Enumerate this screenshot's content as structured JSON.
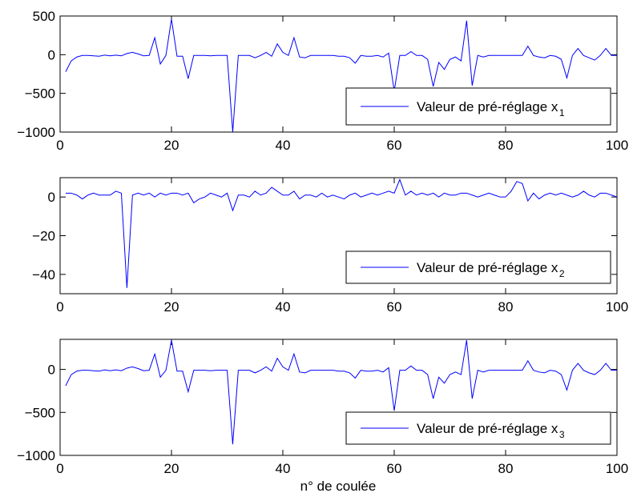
{
  "figure": {
    "xlabel": "n° de coulée"
  },
  "chart_data": [
    {
      "type": "line",
      "xlim": [
        0,
        100
      ],
      "ylim": [
        -1000,
        500
      ],
      "xticks": [
        0,
        20,
        40,
        60,
        80,
        100
      ],
      "yticks": [
        -1000,
        -500,
        0,
        500
      ],
      "legend_position": "bottom-right",
      "series": [
        {
          "name": "Valeur de pré-réglage x",
          "subscript": "1",
          "color": "#0000ff",
          "x": [
            1,
            2,
            3,
            4,
            5,
            6,
            7,
            8,
            9,
            10,
            11,
            12,
            13,
            14,
            15,
            16,
            17,
            18,
            19,
            20,
            21,
            22,
            23,
            24,
            25,
            26,
            27,
            28,
            29,
            30,
            31,
            32,
            33,
            34,
            35,
            36,
            37,
            38,
            39,
            40,
            41,
            42,
            43,
            44,
            45,
            46,
            47,
            48,
            49,
            50,
            51,
            52,
            53,
            54,
            55,
            56,
            57,
            58,
            59,
            60,
            61,
            62,
            63,
            64,
            65,
            66,
            67,
            68,
            69,
            70,
            71,
            72,
            73,
            74,
            75,
            76,
            77,
            78,
            79,
            80,
            81,
            82,
            83,
            84,
            85,
            86,
            87,
            88,
            89,
            90,
            91,
            92,
            93,
            94,
            95,
            96,
            97,
            98,
            99,
            100
          ],
          "y": [
            -220,
            -80,
            -30,
            -10,
            -10,
            -15,
            -20,
            -5,
            -15,
            -5,
            -15,
            15,
            30,
            10,
            -15,
            -10,
            220,
            -120,
            -10,
            460,
            -20,
            -20,
            -310,
            -10,
            -10,
            -10,
            -15,
            -10,
            -10,
            -10,
            -1000,
            -10,
            -10,
            -10,
            -40,
            -10,
            30,
            -20,
            140,
            30,
            -10,
            220,
            -30,
            -40,
            -10,
            -10,
            -10,
            -10,
            -10,
            -20,
            -20,
            -40,
            -110,
            -10,
            -20,
            -20,
            -10,
            -30,
            20,
            -470,
            -10,
            -10,
            40,
            -10,
            -10,
            -60,
            -410,
            -100,
            -190,
            -60,
            -30,
            -80,
            440,
            -400,
            -10,
            -30,
            -10,
            -10,
            -10,
            -10,
            -10,
            -10,
            -10,
            110,
            -10,
            -30,
            -40,
            -10,
            -20,
            -60,
            -300,
            -10,
            80,
            -10,
            -40,
            -70,
            -10,
            80,
            -10,
            -10
          ]
        }
      ]
    },
    {
      "type": "line",
      "xlim": [
        0,
        100
      ],
      "ylim": [
        -50,
        10
      ],
      "xticks": [
        0,
        20,
        40,
        60,
        80,
        100
      ],
      "yticks": [
        -40,
        -20,
        0
      ],
      "legend_position": "bottom-right",
      "series": [
        {
          "name": "Valeur de pré-réglage x",
          "subscript": "2",
          "color": "#0000ff",
          "x": [
            1,
            2,
            3,
            4,
            5,
            6,
            7,
            8,
            9,
            10,
            11,
            12,
            13,
            14,
            15,
            16,
            17,
            18,
            19,
            20,
            21,
            22,
            23,
            24,
            25,
            26,
            27,
            28,
            29,
            30,
            31,
            32,
            33,
            34,
            35,
            36,
            37,
            38,
            39,
            40,
            41,
            42,
            43,
            44,
            45,
            46,
            47,
            48,
            49,
            50,
            51,
            52,
            53,
            54,
            55,
            56,
            57,
            58,
            59,
            60,
            61,
            62,
            63,
            64,
            65,
            66,
            67,
            68,
            69,
            70,
            71,
            72,
            73,
            74,
            75,
            76,
            77,
            78,
            79,
            80,
            81,
            82,
            83,
            84,
            85,
            86,
            87,
            88,
            89,
            90,
            91,
            92,
            93,
            94,
            95,
            96,
            97,
            98,
            99,
            100
          ],
          "y": [
            2,
            2,
            1,
            -1,
            1,
            2,
            1,
            1,
            1,
            3,
            2,
            -47,
            1,
            2,
            1,
            2,
            0,
            2,
            1,
            2,
            2,
            1,
            2,
            -3,
            -1,
            0,
            2,
            1,
            0,
            2,
            -7,
            1,
            1,
            0,
            3,
            1,
            2,
            5,
            3,
            1,
            1,
            3,
            -1,
            1,
            1,
            0,
            2,
            0,
            1,
            0,
            -1,
            1,
            2,
            0,
            1,
            2,
            1,
            2,
            3,
            2,
            9,
            1,
            3,
            1,
            2,
            1,
            2,
            0,
            2,
            1,
            1,
            2,
            2,
            1,
            0,
            1,
            2,
            1,
            0,
            0,
            3,
            8,
            7,
            -2,
            2,
            -1,
            1,
            2,
            1,
            2,
            1,
            0,
            1,
            3,
            1,
            0,
            2,
            2,
            1,
            0
          ]
        }
      ]
    },
    {
      "type": "line",
      "xlim": [
        0,
        100
      ],
      "ylim": [
        -1000,
        350
      ],
      "xticks": [
        0,
        20,
        40,
        60,
        80,
        100
      ],
      "yticks": [
        -1000,
        -500,
        0
      ],
      "legend_position": "bottom-right",
      "series": [
        {
          "name": "Valeur de pré-réglage x",
          "subscript": "3",
          "color": "#0000ff",
          "x": [
            1,
            2,
            3,
            4,
            5,
            6,
            7,
            8,
            9,
            10,
            11,
            12,
            13,
            14,
            15,
            16,
            17,
            18,
            19,
            20,
            21,
            22,
            23,
            24,
            25,
            26,
            27,
            28,
            29,
            30,
            31,
            32,
            33,
            34,
            35,
            36,
            37,
            38,
            39,
            40,
            41,
            42,
            43,
            44,
            45,
            46,
            47,
            48,
            49,
            50,
            51,
            52,
            53,
            54,
            55,
            56,
            57,
            58,
            59,
            60,
            61,
            62,
            63,
            64,
            65,
            66,
            67,
            68,
            69,
            70,
            71,
            72,
            73,
            74,
            75,
            76,
            77,
            78,
            79,
            80,
            81,
            82,
            83,
            84,
            85,
            86,
            87,
            88,
            89,
            90,
            91,
            92,
            93,
            94,
            95,
            96,
            97,
            98,
            99,
            100
          ],
          "y": [
            -190,
            -60,
            -20,
            -10,
            -10,
            -15,
            -20,
            -5,
            -15,
            -5,
            -15,
            15,
            30,
            10,
            -15,
            -10,
            180,
            -90,
            -10,
            340,
            -20,
            -20,
            -260,
            -10,
            -10,
            -10,
            -15,
            -10,
            -10,
            -10,
            -870,
            -10,
            -10,
            -10,
            -40,
            -10,
            30,
            -20,
            130,
            30,
            -10,
            180,
            -30,
            -40,
            -10,
            -10,
            -10,
            -10,
            -10,
            -20,
            -20,
            -40,
            -100,
            -10,
            -20,
            -20,
            -10,
            -30,
            20,
            -480,
            -10,
            -10,
            40,
            -10,
            -10,
            -60,
            -340,
            -90,
            -160,
            -60,
            -30,
            -60,
            340,
            -340,
            -10,
            -30,
            -10,
            -10,
            -10,
            -10,
            -10,
            -10,
            -10,
            100,
            -10,
            -30,
            -40,
            -10,
            -20,
            -60,
            -240,
            -10,
            70,
            -10,
            -40,
            -60,
            -10,
            70,
            -10,
            -10
          ]
        }
      ]
    }
  ]
}
